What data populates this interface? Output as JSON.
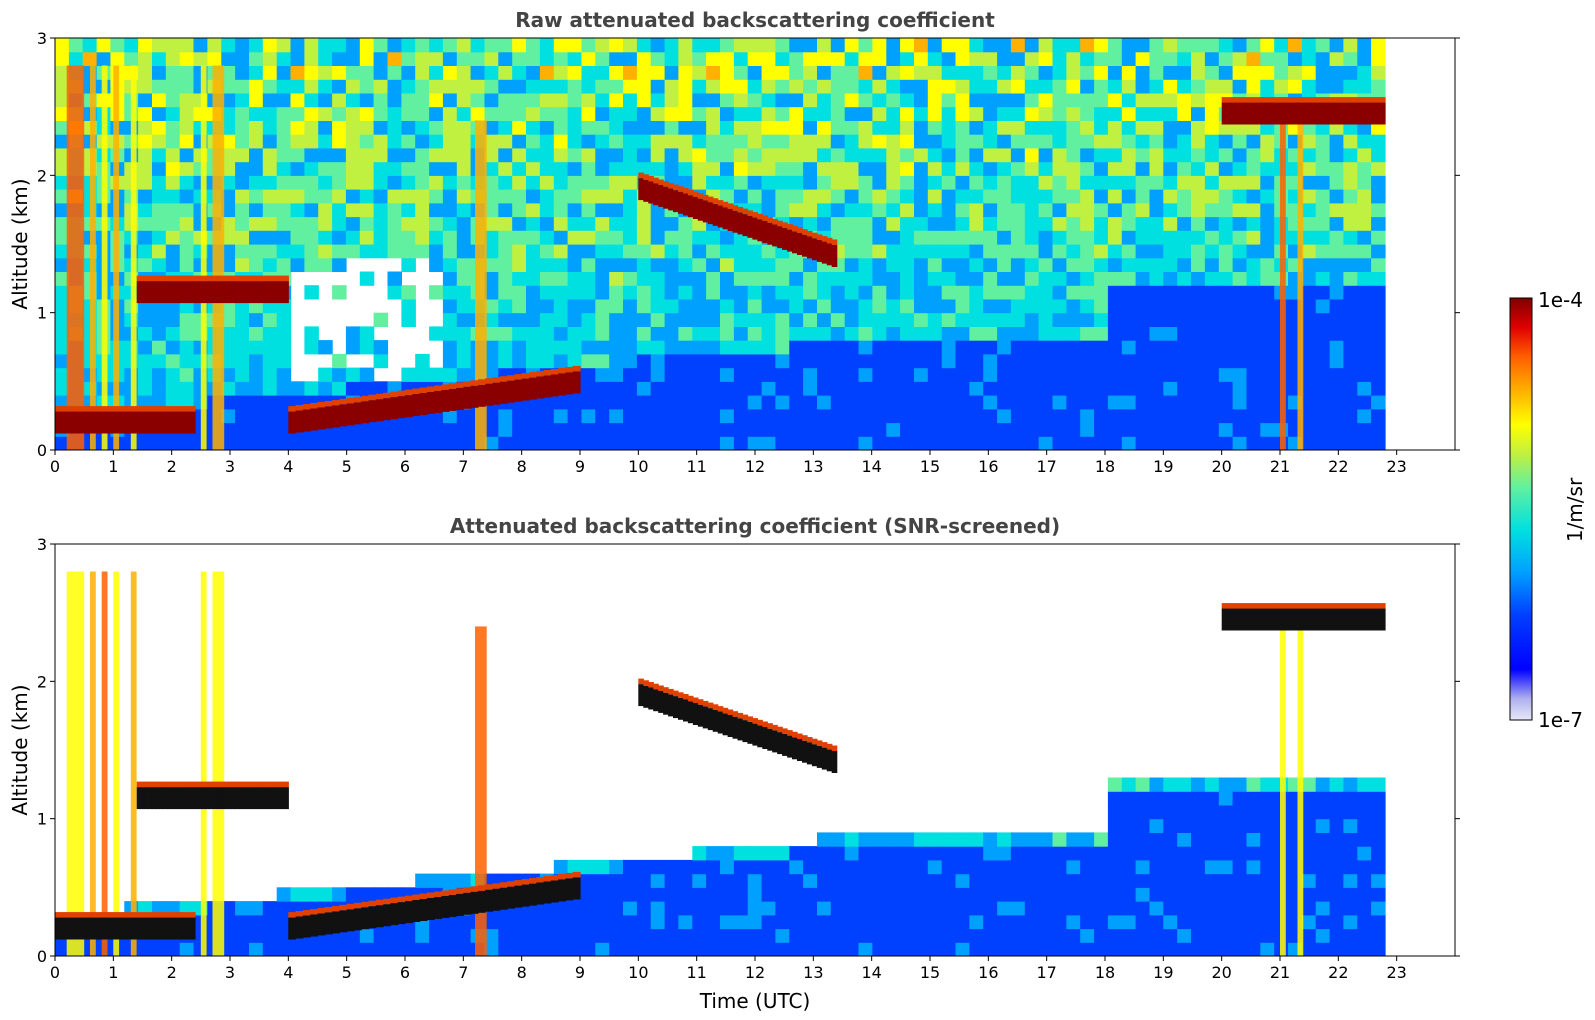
{
  "figure": {
    "xlabel": "Time (UTC)",
    "colorbar": {
      "label": "1/m/sr",
      "max_label": "1e-4",
      "min_label": "1e-7",
      "scale": "log",
      "colormap": "jet",
      "vmin": 1e-07,
      "vmax": 0.0001,
      "colors": [
        "#e8e8f8",
        "#b0b0f0",
        "#0000ff",
        "#0040ff",
        "#00a0ff",
        "#00e0e0",
        "#60f0a0",
        "#c0f040",
        "#ffff00",
        "#ffb000",
        "#ff6000",
        "#e00000",
        "#800000"
      ]
    }
  },
  "chart_data": [
    {
      "type": "heatmap",
      "title": "Raw attenuated backscattering coefficient",
      "xlabel": "",
      "ylabel": "Altitude (km)",
      "xlim": [
        0,
        24
      ],
      "ylim": [
        0,
        3
      ],
      "xticks": [
        "0",
        "1",
        "2",
        "3",
        "4",
        "5",
        "6",
        "7",
        "8",
        "9",
        "10",
        "11",
        "12",
        "13",
        "14",
        "15",
        "16",
        "17",
        "18",
        "19",
        "20",
        "21",
        "22",
        "23"
      ],
      "yticks": [
        "0",
        "1",
        "2",
        "3"
      ],
      "data_end_time_utc": 22.8,
      "features": [
        {
          "name": "low cloud layer",
          "time": [
            0,
            2.4
          ],
          "altitude_km": 0.2
        },
        {
          "name": "cloud layer",
          "time": [
            1.4,
            4.0
          ],
          "altitude_km": 1.15
        },
        {
          "name": "boundary layer top",
          "time": [
            4.0,
            9.0
          ],
          "altitude_km": [
            0.2,
            0.5
          ]
        },
        {
          "name": "descending cloud layer",
          "time": [
            10,
            13.4
          ],
          "altitude_km": [
            1.9,
            1.4
          ]
        },
        {
          "name": "high cloud layer",
          "time": [
            20,
            22.8
          ],
          "altitude_km": 2.45
        }
      ]
    },
    {
      "type": "heatmap",
      "title": "Attenuated backscattering coefficient (SNR-screened)",
      "xlabel": "Time (UTC)",
      "ylabel": "Altitude (km)",
      "xlim": [
        0,
        24
      ],
      "ylim": [
        0,
        3
      ],
      "xticks": [
        "0",
        "1",
        "2",
        "3",
        "4",
        "5",
        "6",
        "7",
        "8",
        "9",
        "10",
        "11",
        "12",
        "13",
        "14",
        "15",
        "16",
        "17",
        "18",
        "19",
        "20",
        "21",
        "22",
        "23"
      ],
      "yticks": [
        "0",
        "1",
        "2",
        "3"
      ],
      "data_end_time_utc": 22.8,
      "features": [
        {
          "name": "low cloud layer",
          "time": [
            0,
            2.4
          ],
          "altitude_km": 0.2
        },
        {
          "name": "cloud layer",
          "time": [
            1.4,
            4.0
          ],
          "altitude_km": 1.15
        },
        {
          "name": "boundary layer top",
          "time": [
            4.0,
            9.0
          ],
          "altitude_km": [
            0.2,
            0.5
          ]
        },
        {
          "name": "descending cloud layer",
          "time": [
            10,
            13.4
          ],
          "altitude_km": [
            1.9,
            1.4
          ]
        },
        {
          "name": "high cloud layer",
          "time": [
            20,
            22.8
          ],
          "altitude_km": 2.45
        }
      ]
    }
  ]
}
